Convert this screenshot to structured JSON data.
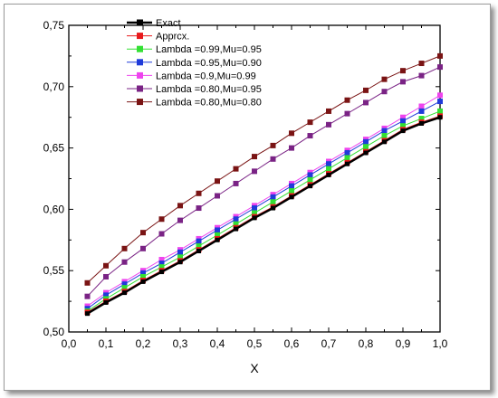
{
  "chart_data": {
    "type": "line",
    "title": "",
    "xlabel": "X",
    "ylabel": "",
    "xlim": [
      0.0,
      1.0
    ],
    "ylim": [
      0.5,
      0.75
    ],
    "x_ticks": [
      "0,0",
      "0,1",
      "0,2",
      "0,3",
      "0,4",
      "0,5",
      "0,6",
      "0,7",
      "0,8",
      "0,9",
      "1,0"
    ],
    "y_ticks": [
      "0,50",
      "0,55",
      "0,60",
      "0,65",
      "0,70",
      "0,75"
    ],
    "x_tick_values": [
      0.0,
      0.1,
      0.2,
      0.3,
      0.4,
      0.5,
      0.6,
      0.7,
      0.8,
      0.9,
      1.0
    ],
    "y_tick_values": [
      0.5,
      0.55,
      0.6,
      0.65,
      0.7,
      0.75
    ],
    "grid": false,
    "legend_position": "top-left",
    "x": [
      0.05,
      0.1,
      0.15,
      0.2,
      0.25,
      0.3,
      0.35,
      0.4,
      0.45,
      0.5,
      0.55,
      0.6,
      0.65,
      0.7,
      0.75,
      0.8,
      0.85,
      0.9,
      0.95,
      1.0
    ],
    "series": [
      {
        "name": "Exact",
        "color": "#000000",
        "marker": "square",
        "line_width": 2.4,
        "values": [
          0.515,
          0.524,
          0.532,
          0.541,
          0.549,
          0.557,
          0.566,
          0.575,
          0.584,
          0.593,
          0.601,
          0.61,
          0.619,
          0.628,
          0.637,
          0.646,
          0.655,
          0.664,
          0.67,
          0.675
        ]
      },
      {
        "name": "Apprcx.",
        "color": "#e8191c",
        "marker": "square",
        "line_width": 1,
        "values": [
          0.516,
          0.525,
          0.533,
          0.542,
          0.55,
          0.558,
          0.567,
          0.576,
          0.585,
          0.594,
          0.602,
          0.611,
          0.62,
          0.629,
          0.638,
          0.647,
          0.656,
          0.665,
          0.671,
          0.676
        ]
      },
      {
        "name": "Lambda =0.99,Mu=0.95",
        "color": "#33e033",
        "marker": "square",
        "line_width": 1,
        "values": [
          0.517,
          0.527,
          0.536,
          0.545,
          0.553,
          0.561,
          0.57,
          0.579,
          0.588,
          0.597,
          0.606,
          0.615,
          0.624,
          0.633,
          0.642,
          0.651,
          0.66,
          0.668,
          0.674,
          0.68
        ]
      },
      {
        "name": "Lambda =0.95,Mu=0.90",
        "color": "#1f3bd9",
        "marker": "square",
        "line_width": 1,
        "values": [
          0.519,
          0.53,
          0.539,
          0.548,
          0.556,
          0.565,
          0.574,
          0.583,
          0.592,
          0.601,
          0.61,
          0.619,
          0.628,
          0.637,
          0.646,
          0.655,
          0.664,
          0.672,
          0.68,
          0.688
        ]
      },
      {
        "name": "Lambda =0.9,Mu=0.99",
        "color": "#ee44ee",
        "marker": "square",
        "line_width": 1,
        "values": [
          0.521,
          0.532,
          0.541,
          0.55,
          0.559,
          0.567,
          0.576,
          0.585,
          0.594,
          0.603,
          0.612,
          0.621,
          0.63,
          0.639,
          0.648,
          0.657,
          0.666,
          0.675,
          0.684,
          0.693
        ]
      },
      {
        "name": "Lambda =0.80,Mu=0.95",
        "color": "#7a2385",
        "marker": "square",
        "line_width": 1,
        "values": [
          0.529,
          0.545,
          0.557,
          0.568,
          0.58,
          0.591,
          0.601,
          0.611,
          0.621,
          0.631,
          0.641,
          0.65,
          0.66,
          0.669,
          0.678,
          0.687,
          0.696,
          0.704,
          0.709,
          0.716
        ]
      },
      {
        "name": "Lambda =0.80,Mu=0.80",
        "color": "#7a1414",
        "marker": "square",
        "line_width": 1,
        "values": [
          0.54,
          0.554,
          0.568,
          0.581,
          0.592,
          0.603,
          0.613,
          0.623,
          0.633,
          0.643,
          0.652,
          0.662,
          0.671,
          0.68,
          0.689,
          0.697,
          0.706,
          0.713,
          0.719,
          0.725
        ]
      }
    ]
  }
}
